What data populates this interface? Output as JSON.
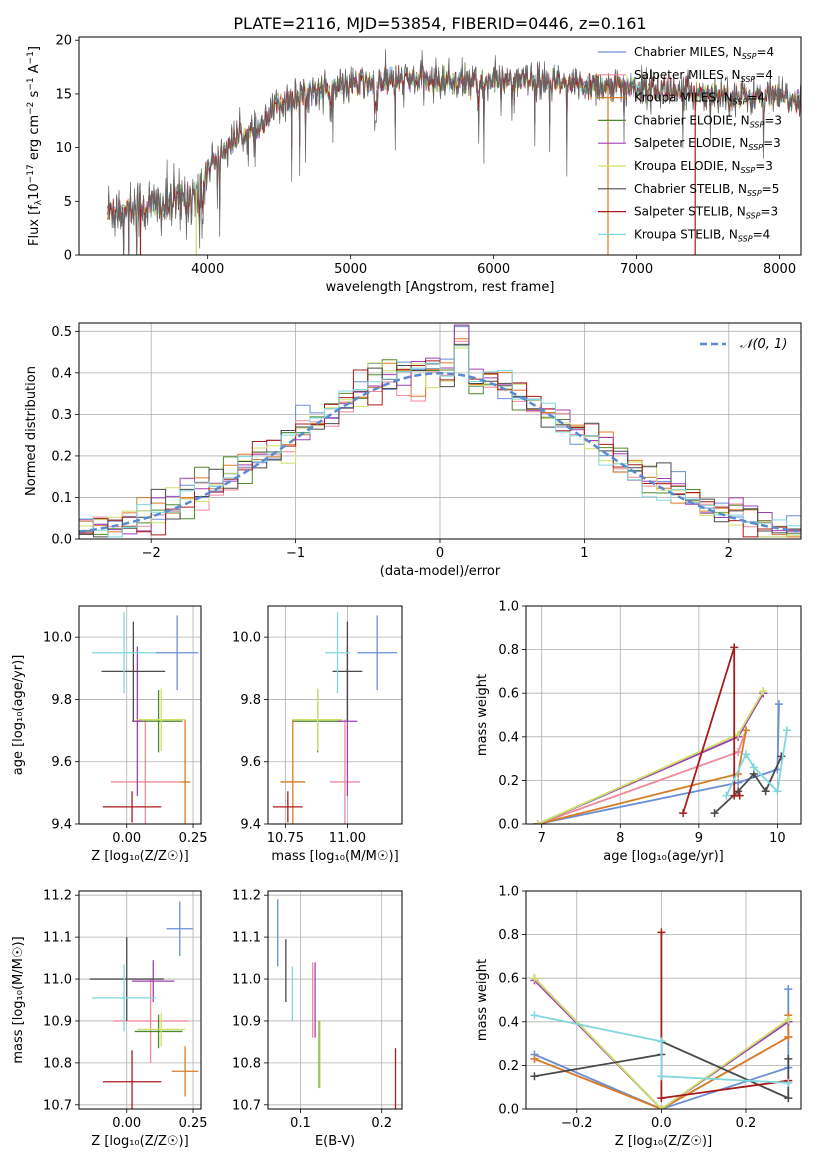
{
  "colors": {
    "chabrier_miles": "#6a8fd6",
    "salpeter_miles": "#f08a9c",
    "kroupa_miles": "#d97c26",
    "chabrier_elodie": "#4e8a2a",
    "salpeter_elodie": "#a13fb8",
    "kroupa_elodie": "#cde06a",
    "chabrier_stelib": "#4a4a4a",
    "salpeter_stelib": "#a81c1c",
    "kroupa_stelib": "#7fd8dc"
  },
  "legend_models": [
    {
      "key": "chabrier_miles",
      "label": "Chabrier MILES, N",
      "sub": "SSP",
      "eq": "=4"
    },
    {
      "key": "salpeter_miles",
      "label": "Salpeter MILES, N",
      "sub": "SSP",
      "eq": "=4"
    },
    {
      "key": "kroupa_miles",
      "label": "Kroupa MILES, N",
      "sub": "SSP",
      "eq": "=4"
    },
    {
      "key": "chabrier_elodie",
      "label": "Chabrier ELODIE, N",
      "sub": "SSP",
      "eq": "=3"
    },
    {
      "key": "salpeter_elodie",
      "label": "Salpeter ELODIE, N",
      "sub": "SSP",
      "eq": "=3"
    },
    {
      "key": "kroupa_elodie",
      "label": "Kroupa ELODIE, N",
      "sub": "SSP",
      "eq": "=3"
    },
    {
      "key": "chabrier_stelib",
      "label": "Chabrier STELIB, N",
      "sub": "SSP",
      "eq": "=5"
    },
    {
      "key": "salpeter_stelib",
      "label": "Salpeter STELIB, N",
      "sub": "SSP",
      "eq": "=3"
    },
    {
      "key": "kroupa_stelib",
      "label": "Kroupa STELIB, N",
      "sub": "SSP",
      "eq": "=4"
    }
  ],
  "chart_data": [
    {
      "id": "spectrum",
      "type": "line",
      "title": "PLATE=2116, MJD=53854, FIBERID=0446, z=0.161",
      "xlabel": "wavelength [Angstrom, rest frame]",
      "ylabel_parts": [
        "Flux [f",
        "λ",
        "10",
        "−17",
        " erg cm",
        "−2",
        " s",
        "−1",
        " A",
        "−1",
        "]"
      ],
      "xlim": [
        3100,
        8150
      ],
      "ylim": [
        0,
        20.3
      ],
      "xticks": [
        4000,
        5000,
        6000,
        7000,
        8000
      ],
      "yticks": [
        0,
        5,
        10,
        15,
        20
      ],
      "continuum_knots": [
        [
          3300,
          4.2
        ],
        [
          3600,
          4.5
        ],
        [
          3750,
          4.7
        ],
        [
          3900,
          5.6
        ],
        [
          4000,
          8.2
        ],
        [
          4100,
          9.5
        ],
        [
          4200,
          11.0
        ],
        [
          4350,
          11.5
        ],
        [
          4500,
          14.0
        ],
        [
          4700,
          15.2
        ],
        [
          4900,
          15.6
        ],
        [
          5100,
          16.0
        ],
        [
          5300,
          16.3
        ],
        [
          5500,
          16.3
        ],
        [
          5700,
          16.2
        ],
        [
          5900,
          16.1
        ],
        [
          6100,
          16.3
        ],
        [
          6400,
          16.0
        ],
        [
          6700,
          15.8
        ],
        [
          7000,
          15.6
        ],
        [
          7300,
          15.2
        ],
        [
          7700,
          14.8
        ],
        [
          8000,
          14.6
        ],
        [
          8150,
          14.5
        ]
      ],
      "grid": false,
      "legend_position": "upper right"
    },
    {
      "id": "residuals",
      "type": "histogram",
      "xlabel": "(data-model)/error",
      "ylabel": "Normed distribution",
      "xlim": [
        -2.5,
        2.5
      ],
      "ylim": [
        0,
        0.52
      ],
      "xticks": [
        -2,
        -1,
        0,
        1,
        2
      ],
      "xtick_labels": [
        "−2",
        "−1",
        "0",
        "1",
        "2"
      ],
      "yticks": [
        0,
        0.1,
        0.2,
        0.3,
        0.4,
        0.5
      ],
      "ytick_labels": [
        "0.0",
        "0.1",
        "0.2",
        "0.3",
        "0.4",
        "0.5"
      ],
      "bin_width": 0.1,
      "reference_curve": {
        "name": "𝒩(0, 1)",
        "mean": 0,
        "sigma": 1,
        "color": "#5a8ad6"
      },
      "grid": true,
      "legend_position": "upper right"
    },
    {
      "id": "age_vs_Z",
      "type": "errorbar",
      "xlabel": "Z [log₁₀(Z/Z☉)]",
      "ylabel": "age  [log₁₀(age/yr)]",
      "xlim": [
        -0.18,
        0.28
      ],
      "ylim": [
        9.4,
        10.1
      ],
      "xticks": [
        0.0,
        0.25
      ],
      "xtick_labels": [
        "0.00",
        "0.25"
      ],
      "yticks": [
        9.4,
        9.6,
        9.8,
        10.0
      ],
      "ytick_labels": [
        "9.4",
        "9.6",
        "9.8",
        "10.0"
      ],
      "points": [
        {
          "key": "chabrier_miles",
          "x": 0.19,
          "xerr": 0.08,
          "y": 9.95,
          "yerr": 0.12
        },
        {
          "key": "salpeter_miles",
          "x": 0.07,
          "xerr": 0.13,
          "y": 9.535,
          "yerr": 0.2
        },
        {
          "key": "kroupa_miles",
          "x": 0.22,
          "xerr": 0.02,
          "y": 9.535,
          "yerr": 0.2
        },
        {
          "key": "chabrier_elodie",
          "x": 0.12,
          "xerr": 0.09,
          "y": 9.73,
          "yerr": 0.1
        },
        {
          "key": "salpeter_elodie",
          "x": 0.04,
          "xerr": 0.02,
          "y": 9.73,
          "yerr": 0.24
        },
        {
          "key": "kroupa_elodie",
          "x": 0.13,
          "xerr": 0.09,
          "y": 9.735,
          "yerr": 0.1
        },
        {
          "key": "chabrier_stelib",
          "x": 0.025,
          "xerr": 0.12,
          "y": 9.89,
          "yerr": 0.16
        },
        {
          "key": "salpeter_stelib",
          "x": 0.02,
          "xerr": 0.11,
          "y": 9.455,
          "yerr": 0.05
        },
        {
          "key": "kroupa_stelib",
          "x": -0.01,
          "xerr": 0.12,
          "y": 9.95,
          "yerr": 0.13
        }
      ]
    },
    {
      "id": "age_vs_mass",
      "type": "errorbar",
      "xlabel": "mass [log₁₀(M/M☉)]",
      "ylabel": "",
      "xlim": [
        10.68,
        11.22
      ],
      "ylim": [
        9.4,
        10.1
      ],
      "xticks": [
        10.75,
        11.0
      ],
      "xtick_labels": [
        "10.75",
        "11.00"
      ],
      "yticks": [
        9.4,
        9.6,
        9.8,
        10.0
      ],
      "ytick_labels": [
        "9.4",
        "9.6",
        "9.8",
        "10.0"
      ],
      "points": [
        {
          "key": "chabrier_miles",
          "x": 11.12,
          "xerr": 0.08,
          "y": 9.95,
          "yerr": 0.12
        },
        {
          "key": "salpeter_miles",
          "x": 10.99,
          "xerr": 0.06,
          "y": 9.535,
          "yerr": 0.2
        },
        {
          "key": "kroupa_miles",
          "x": 10.78,
          "xerr": 0.05,
          "y": 9.535,
          "yerr": 0.2
        },
        {
          "key": "chabrier_elodie",
          "x": 10.88,
          "xerr": 0.1,
          "y": 9.73,
          "yerr": 0.1
        },
        {
          "key": "salpeter_elodie",
          "x": 11.0,
          "xerr": 0.04,
          "y": 9.73,
          "yerr": 0.24
        },
        {
          "key": "kroupa_elodie",
          "x": 10.88,
          "xerr": 0.1,
          "y": 9.735,
          "yerr": 0.1
        },
        {
          "key": "chabrier_stelib",
          "x": 11.0,
          "xerr": 0.06,
          "y": 9.89,
          "yerr": 0.16
        },
        {
          "key": "salpeter_stelib",
          "x": 10.76,
          "xerr": 0.06,
          "y": 9.455,
          "yerr": 0.05
        },
        {
          "key": "kroupa_stelib",
          "x": 10.96,
          "xerr": 0.05,
          "y": 9.95,
          "yerr": 0.13
        }
      ]
    },
    {
      "id": "weight_vs_age",
      "type": "line",
      "xlabel": "age  [log₁₀(age/yr)]",
      "ylabel": "mass weight",
      "xlim": [
        6.8,
        10.3
      ],
      "ylim": [
        0,
        1.0
      ],
      "xticks": [
        7,
        8,
        9,
        10
      ],
      "yticks": [
        0,
        0.2,
        0.4,
        0.6,
        0.8,
        1.0
      ],
      "ytick_labels": [
        "0.0",
        "0.2",
        "0.4",
        "0.6",
        "0.8",
        "1.0"
      ],
      "grid": true,
      "series": [
        {
          "key": "chabrier_miles",
          "x": [
            6.95,
            9.5,
            10.0,
            10.02
          ],
          "y": [
            0.0,
            0.19,
            0.25,
            0.55
          ]
        },
        {
          "key": "salpeter_miles",
          "x": [
            6.95,
            9.5,
            9.6
          ],
          "y": [
            0.0,
            0.33,
            0.43
          ]
        },
        {
          "key": "kroupa_miles",
          "x": [
            6.95,
            9.5,
            9.6
          ],
          "y": [
            0.0,
            0.23,
            0.43
          ]
        },
        {
          "key": "chabrier_elodie",
          "x": [
            6.95,
            9.5,
            9.82
          ],
          "y": [
            0.0,
            0.4,
            0.6
          ]
        },
        {
          "key": "salpeter_elodie",
          "x": [
            6.95,
            9.5,
            9.82
          ],
          "y": [
            0.0,
            0.4,
            0.6
          ]
        },
        {
          "key": "kroupa_elodie",
          "x": [
            6.95,
            9.5,
            9.82
          ],
          "y": [
            0.0,
            0.41,
            0.61
          ]
        },
        {
          "key": "chabrier_stelib",
          "x": [
            9.2,
            9.5,
            9.7,
            9.85,
            10.05
          ],
          "y": [
            0.05,
            0.15,
            0.23,
            0.15,
            0.31
          ]
        },
        {
          "key": "salpeter_stelib",
          "x": [
            8.8,
            9.45,
            9.45,
            9.52
          ],
          "y": [
            0.05,
            0.81,
            0.13,
            0.13
          ]
        },
        {
          "key": "kroupa_stelib",
          "x": [
            9.35,
            9.6,
            9.7,
            10.0,
            10.12
          ],
          "y": [
            0.13,
            0.32,
            0.26,
            0.15,
            0.43
          ]
        }
      ]
    },
    {
      "id": "mass_vs_Z",
      "type": "errorbar",
      "xlabel": "Z [log₁₀(Z/Z☉)]",
      "ylabel": "mass [log₁₀(M/M☉)]",
      "xlim": [
        -0.18,
        0.28
      ],
      "ylim": [
        10.69,
        11.21
      ],
      "xticks": [
        0.0,
        0.25
      ],
      "xtick_labels": [
        "0.00",
        "0.25"
      ],
      "yticks": [
        10.7,
        10.8,
        10.9,
        11.0,
        11.1,
        11.2
      ],
      "ytick_labels": [
        "10.7",
        "10.8",
        "10.9",
        "11.0",
        "11.1",
        "11.2"
      ],
      "points": [
        {
          "key": "chabrier_miles",
          "x": 0.2,
          "xerr": 0.05,
          "y": 11.12,
          "yerr": 0.065
        },
        {
          "key": "salpeter_miles",
          "x": 0.09,
          "xerr": 0.14,
          "y": 10.9,
          "yerr": 0.1
        },
        {
          "key": "kroupa_miles",
          "x": 0.22,
          "xerr": 0.05,
          "y": 10.78,
          "yerr": 0.06
        },
        {
          "key": "chabrier_elodie",
          "x": 0.12,
          "xerr": 0.09,
          "y": 10.875,
          "yerr": 0.04
        },
        {
          "key": "salpeter_elodie",
          "x": 0.1,
          "xerr": 0.08,
          "y": 10.995,
          "yerr": 0.05
        },
        {
          "key": "kroupa_elodie",
          "x": 0.13,
          "xerr": 0.09,
          "y": 10.88,
          "yerr": 0.04
        },
        {
          "key": "chabrier_stelib",
          "x": 0.0,
          "xerr": 0.14,
          "y": 11.0,
          "yerr": 0.1
        },
        {
          "key": "salpeter_stelib",
          "x": 0.02,
          "xerr": 0.11,
          "y": 10.755,
          "yerr": 0.075
        },
        {
          "key": "kroupa_stelib",
          "x": -0.01,
          "xerr": 0.12,
          "y": 10.955,
          "yerr": 0.08
        }
      ]
    },
    {
      "id": "mass_vs_EBV",
      "type": "errorbar",
      "xlabel": "E(B-V)",
      "ylabel": "",
      "xlim": [
        0.06,
        0.225
      ],
      "ylim": [
        10.69,
        11.21
      ],
      "xticks": [
        0.1,
        0.2
      ],
      "xtick_labels": [
        "0.1",
        "0.2"
      ],
      "yticks": [
        10.7,
        10.8,
        10.9,
        11.0,
        11.1,
        11.2
      ],
      "ytick_labels": [
        "10.7",
        "10.8",
        "10.9",
        "11.0",
        "11.1",
        "11.2"
      ],
      "points": [
        {
          "key": "chabrier_miles",
          "x": 0.072,
          "xerr": 0,
          "y": 11.11,
          "yerr": 0.08
        },
        {
          "key": "salpeter_miles",
          "x": 0.115,
          "xerr": 0,
          "y": 10.95,
          "yerr": 0.09
        },
        {
          "key": "kroupa_miles",
          "x": 0.123,
          "xerr": 0,
          "y": 10.82,
          "yerr": 0.08
        },
        {
          "key": "chabrier_elodie",
          "x": 0.123,
          "xerr": 0,
          "y": 10.82,
          "yerr": 0.08
        },
        {
          "key": "salpeter_elodie",
          "x": 0.118,
          "xerr": 0,
          "y": 10.95,
          "yerr": 0.09
        },
        {
          "key": "kroupa_elodie",
          "x": 0.124,
          "xerr": 0,
          "y": 10.82,
          "yerr": 0.08
        },
        {
          "key": "chabrier_stelib",
          "x": 0.082,
          "xerr": 0,
          "y": 11.02,
          "yerr": 0.075
        },
        {
          "key": "salpeter_stelib",
          "x": 0.217,
          "xerr": 0,
          "y": 10.76,
          "yerr": 0.075
        },
        {
          "key": "kroupa_stelib",
          "x": 0.09,
          "xerr": 0,
          "y": 10.965,
          "yerr": 0.065
        }
      ]
    },
    {
      "id": "weight_vs_Z",
      "type": "line",
      "xlabel": "Z [log₁₀(Z/Z☉)]",
      "ylabel": "mass weight",
      "xlim": [
        -0.32,
        0.33
      ],
      "ylim": [
        0,
        1.0
      ],
      "xticks": [
        -0.2,
        0.0,
        0.2
      ],
      "xtick_labels": [
        "−0.2",
        "0.0",
        "0.2"
      ],
      "yticks": [
        0,
        0.2,
        0.4,
        0.6,
        0.8,
        1.0
      ],
      "ytick_labels": [
        "0.0",
        "0.2",
        "0.4",
        "0.6",
        "0.8",
        "1.0"
      ],
      "grid": true,
      "series": [
        {
          "key": "chabrier_miles",
          "x": [
            -0.3,
            0.0,
            0.3,
            0.3
          ],
          "y": [
            0.25,
            0.0,
            0.19,
            0.55
          ]
        },
        {
          "key": "salpeter_miles",
          "x": [
            -0.3,
            0.0,
            0.3
          ],
          "y": [
            0.23,
            0.0,
            0.33
          ]
        },
        {
          "key": "kroupa_miles",
          "x": [
            -0.3,
            0.0,
            0.3,
            0.3
          ],
          "y": [
            0.23,
            0.0,
            0.33,
            0.43
          ]
        },
        {
          "key": "chabrier_elodie",
          "x": [
            -0.3,
            0.0,
            0.3
          ],
          "y": [
            0.6,
            0.0,
            0.4
          ]
        },
        {
          "key": "salpeter_elodie",
          "x": [
            -0.3,
            0.0,
            0.3
          ],
          "y": [
            0.59,
            0.0,
            0.4
          ]
        },
        {
          "key": "kroupa_elodie",
          "x": [
            -0.3,
            0.0,
            0.3
          ],
          "y": [
            0.6,
            0.0,
            0.41
          ]
        },
        {
          "key": "chabrier_stelib",
          "x": [
            -0.3,
            0.0,
            0.0,
            0.3,
            0.3
          ],
          "y": [
            0.15,
            0.25,
            0.31,
            0.05,
            0.23
          ]
        },
        {
          "key": "salpeter_stelib",
          "x": [
            0.0,
            0.0,
            0.3
          ],
          "y": [
            0.81,
            0.05,
            0.13
          ]
        },
        {
          "key": "kroupa_stelib",
          "x": [
            -0.3,
            0.0,
            0.0,
            0.3
          ],
          "y": [
            0.43,
            0.31,
            0.15,
            0.12
          ]
        }
      ]
    }
  ]
}
